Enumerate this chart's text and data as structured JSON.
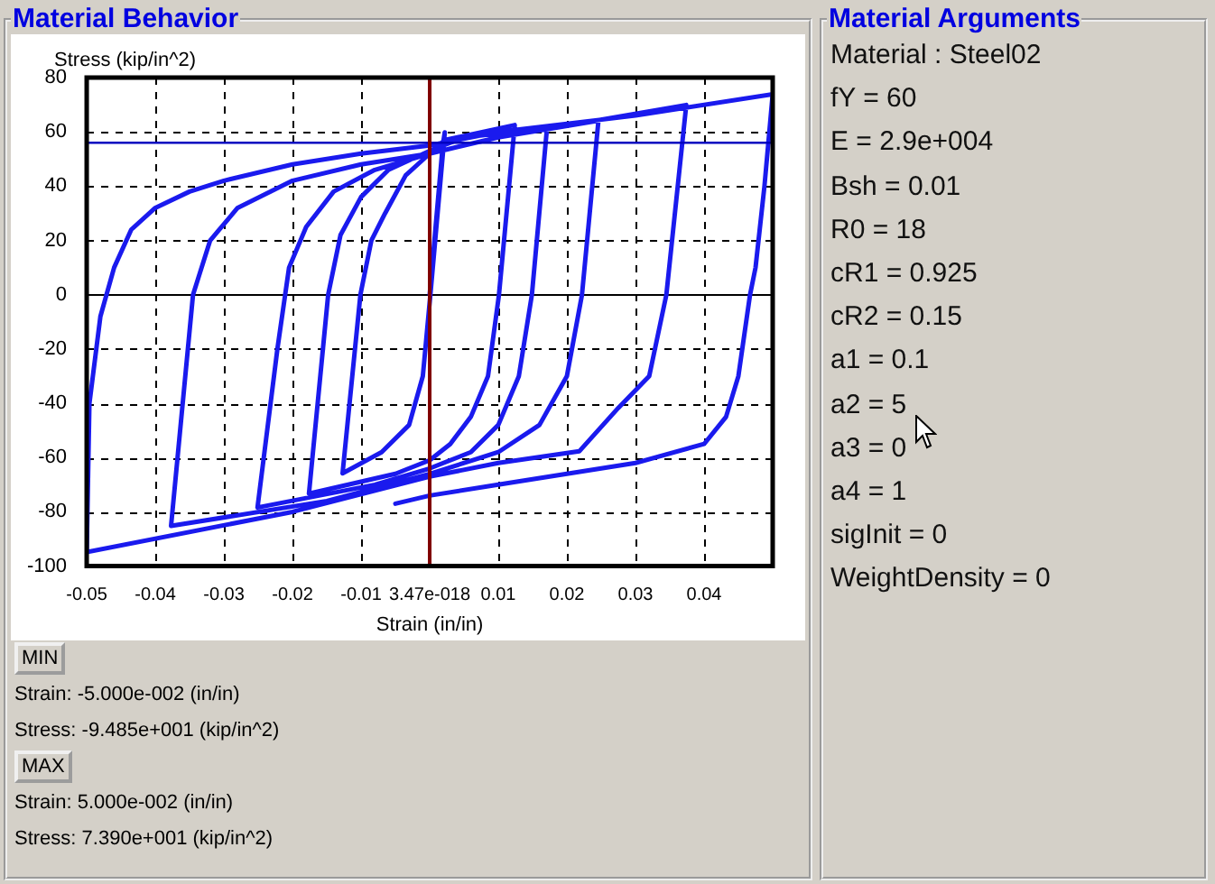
{
  "chart_data": [
    {
      "type": "line",
      "title": "Material Behavior",
      "xlabel": "Strain (in/in)",
      "ylabel": "Stress (kip/in^2)",
      "xlim": [
        -0.05,
        0.05
      ],
      "xticks": [
        -0.05,
        -0.04,
        -0.03,
        -0.02,
        -0.01,
        {
          "value": 0,
          "label": "3.47e-018"
        },
        0.01,
        0.02,
        0.03,
        0.04
      ],
      "ylim": [
        -100,
        80
      ],
      "yticks": [
        -100,
        -80,
        -60,
        -40,
        -20,
        0,
        20,
        40,
        60,
        80
      ],
      "grid": true,
      "marker": "none",
      "line_style": "solid",
      "legend": false,
      "ref_lines": [
        {
          "axis": "y",
          "value": 56,
          "color": "#0000c0"
        },
        {
          "axis": "x",
          "value": 0,
          "color": "#800000"
        }
      ],
      "series": [
        {
          "color": "#1a1aee",
          "x": [
            0,
            0.0019,
            0.0022,
            0.0001,
            -0.001,
            -0.003,
            -0.007,
            -0.0127,
            -0.0101,
            -0.0085,
            -0.0065,
            -0.0035,
            0,
            0.0022,
            0.0124,
            0.0101,
            0.0085,
            0.006,
            0.003,
            0,
            -0.005,
            -0.0176,
            -0.0148,
            -0.013,
            -0.01,
            -0.006,
            0,
            0.005,
            0.0171,
            0.0149,
            0.013,
            0.01,
            0.006,
            0,
            -0.008,
            -0.0251,
            -0.0222,
            -0.0205,
            -0.018,
            -0.014,
            -0.008,
            0,
            0.01,
            0.0246,
            0.0222,
            0.02,
            0.016,
            0.01,
            0,
            -0.015,
            -0.0377,
            -0.0345,
            -0.032,
            -0.028,
            -0.02,
            -0.01,
            0,
            0.01,
            0.0374,
            0.0345,
            0.032,
            0.0275,
            0.0218,
            0.01,
            0,
            -0.02,
            -0.05,
            -0.0496,
            -0.048,
            -0.046,
            -0.0435,
            -0.04,
            -0.035,
            -0.03,
            -0.02,
            -0.01,
            0,
            0.01,
            0.03,
            0.05,
            0.0488,
            0.0475,
            0.0467,
            0.045,
            0.0432,
            0.04,
            0.03,
            0.02,
            0.01,
            0,
            -0.005
          ],
          "values": [
            0,
            55,
            59.8,
            0,
            -30,
            -48,
            -58,
            -65.8,
            0,
            20,
            30,
            44,
            52,
            57,
            62.5,
            0,
            -30,
            -45,
            -55,
            -61,
            -66,
            -73.3,
            0,
            22,
            36,
            46,
            53,
            58,
            61.4,
            0,
            -30,
            -48,
            -58,
            -64,
            -70,
            -78.4,
            -20,
            10,
            25,
            38,
            46,
            52,
            58,
            64.1,
            0,
            -30,
            -48,
            -58,
            -66,
            -76,
            -85.2,
            0,
            20,
            32,
            42,
            48,
            52,
            58,
            69.9,
            0,
            -30,
            -41.7,
            -57.7,
            -62,
            -67,
            -80,
            -94.85,
            -40,
            -8,
            10,
            24,
            32,
            38,
            42,
            48,
            52,
            55,
            60,
            66,
            73.9,
            40,
            10,
            0,
            -30,
            -45,
            -55,
            -62,
            -66,
            -70,
            -74,
            -77
          ]
        }
      ],
      "annotations": [
        "MIN",
        "Strain: -5.000e-002 (in/in)",
        "Stress: -9.485e+001 (kip/in^2)",
        "MAX",
        "Strain: 5.000e-002 (in/in)",
        "Stress: 7.390e+001 (kip/in^2)"
      ]
    },
    {
      "type": "other",
      "title": "Material Arguments",
      "annotations": [
        "Material : Steel02",
        "fY = 60",
        "E = 2.9e+004",
        "Bsh = 0.01",
        "R0 = 18",
        "cR1 = 0.925",
        "cR2 = 0.15",
        "a1 = 0.1",
        "a2 = 5",
        "a3 = 0",
        "a4 = 1",
        "sigInit = 0",
        "WeightDensity = 0"
      ]
    }
  ]
}
